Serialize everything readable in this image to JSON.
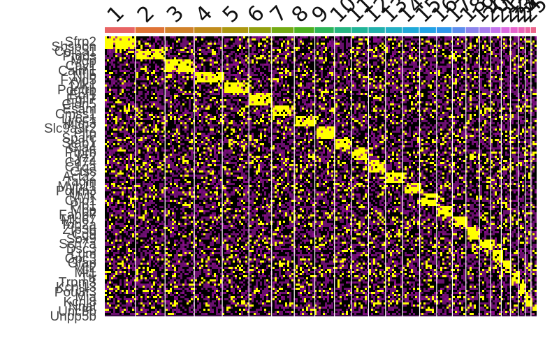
{
  "chart_data": {
    "type": "heatmap",
    "title": "",
    "xlabel": "",
    "ylabel": "",
    "clusters": [
      "1",
      "2",
      "3",
      "4",
      "5",
      "6",
      "7",
      "8",
      "9",
      "10",
      "11",
      "12",
      "13",
      "14",
      "15",
      "16",
      "17",
      "18",
      "19",
      "20",
      "21",
      "22",
      "23",
      "24",
      "25"
    ],
    "cluster_cell_share": [
      0.07,
      0.068,
      0.067,
      0.064,
      0.061,
      0.052,
      0.052,
      0.047,
      0.045,
      0.039,
      0.039,
      0.039,
      0.039,
      0.039,
      0.039,
      0.036,
      0.031,
      0.031,
      0.026,
      0.024,
      0.021,
      0.018,
      0.016,
      0.013,
      0.013
    ],
    "cluster_colors": [
      "#e86464",
      "#df7336",
      "#d1822b",
      "#c18c1d",
      "#ac9811",
      "#93a00f",
      "#74ab14",
      "#4eb121",
      "#2db55a",
      "#26b581",
      "#21b497",
      "#21b0ac",
      "#23b0c5",
      "#20a9d8",
      "#23a2e6",
      "#2f97ec",
      "#5c8ded",
      "#8c84ec",
      "#a77eee",
      "#c474ec",
      "#dc6ae0",
      "#e664cd",
      "#ea62b8",
      "#ec64a2",
      "#ec668c"
    ],
    "gene_labels": [
      "Sfrp2",
      "Sbspon",
      "Col3a1",
      "Ptgds",
      "Mgp",
      "Cav1",
      "Calm1",
      "Nfib",
      "Fxyd5",
      "Dlk1",
      "Pdgfrb",
      "Ebf1",
      "Egfl7",
      "Cldn5",
      "Esam",
      "Cmss1",
      "Ly6c1",
      "Ifitm3",
      "Slc9a3r2",
      "Pltp",
      "Sparc",
      "Stab1",
      "Gja4",
      "Ptprb",
      "Lyz2",
      "Cd74",
      "C1qa",
      "Ctss",
      "Acta2",
      "Tagln",
      "Myh11",
      "Pdlim3",
      "Mylk",
      "Crip1",
      "Plp1",
      "Mbp",
      "Fabp7",
      "Mki67",
      "Top2a",
      "Zfp36",
      "Cd9",
      "Sox9",
      "Scn7a",
      "Dsc3",
      "Lum",
      "Gpc3",
      "Gfap",
      "Mt2",
      "Mt1",
      "Ttr",
      "Trpm3",
      "Kcnj13",
      "Pou3f3",
      "Mia",
      "Kcnj8",
      "Nnat",
      "Unc5b",
      "Unpp5b"
    ],
    "value_scale": {
      "low": "#000000",
      "mid": "#8a0a8a",
      "high": "#ffff00"
    },
    "legend": "none",
    "grid": false
  }
}
